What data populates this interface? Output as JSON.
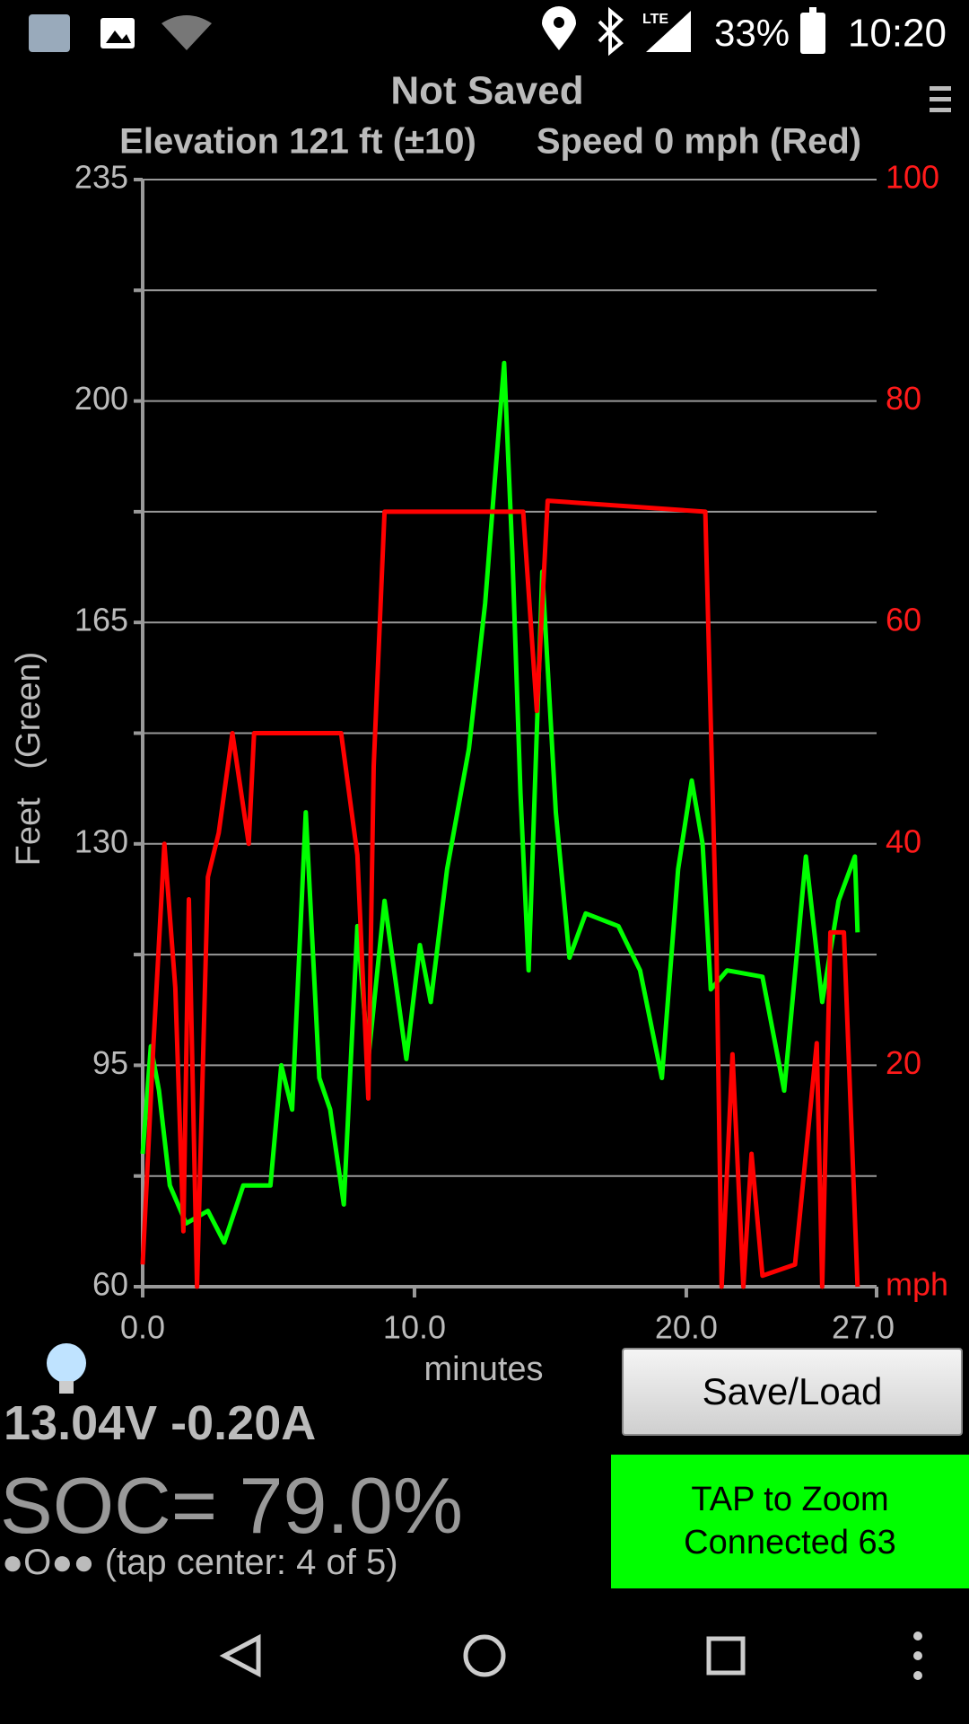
{
  "status_bar": {
    "network": "LTE",
    "battery": "33%",
    "time": "10:20"
  },
  "chart_data": {
    "type": "line",
    "title": "Not Saved",
    "subtitles": [
      "Elevation 121 ft (±10)",
      "Speed 0 mph (Red)"
    ],
    "x_label": "minutes",
    "y_label": "Feet   (Green)",
    "xlim": [
      0,
      27
    ],
    "xticks": [
      {
        "value": 0,
        "label": "0.0"
      },
      {
        "value": 10,
        "label": "10.0"
      },
      {
        "value": 20,
        "label": "20.0"
      },
      {
        "value": 27,
        "label": "27.0"
      }
    ],
    "ylim": [
      60,
      235
    ],
    "yticks": [
      60,
      95,
      130,
      165,
      200,
      235
    ],
    "y2lim": [
      0,
      100
    ],
    "y2ticks": [
      {
        "value": 0,
        "label": "mph"
      },
      20,
      40,
      60,
      80,
      100
    ],
    "grid": true,
    "series": [
      {
        "name": "Elevation",
        "color": "#00ff00",
        "x": [
          0,
          0.3,
          0.6,
          1.0,
          1.6,
          2.4,
          3.0,
          3.7,
          4.7,
          5.1,
          5.5,
          6.0,
          6.5,
          6.9,
          7.4,
          7.9,
          8.3,
          8.9,
          9.7,
          10.2,
          10.6,
          11.2,
          12.0,
          12.6,
          13.0,
          13.3,
          13.6,
          13.9,
          14.2,
          14.7,
          15.2,
          15.7,
          16.3,
          17.5,
          18.3,
          19.1,
          19.7,
          20.2,
          20.6,
          20.9,
          21.5,
          22.8,
          23.6,
          24.4,
          25.0,
          25.6,
          26.2,
          26.3
        ],
        "values": [
          81,
          98,
          91,
          76,
          70,
          72,
          67,
          76,
          76,
          95,
          88,
          135,
          93,
          88,
          73,
          117,
          96,
          121,
          96,
          114,
          105,
          126,
          145,
          168,
          190,
          206,
          176,
          138,
          110,
          173,
          135,
          112,
          119,
          117,
          110,
          93,
          126,
          140,
          130,
          107,
          110,
          109,
          91,
          128,
          105,
          121,
          128,
          116
        ]
      },
      {
        "name": "Speed",
        "color": "#ff0000",
        "axis": "y2",
        "x": [
          0,
          0.4,
          0.8,
          1.2,
          1.5,
          1.7,
          2.0,
          2.4,
          2.8,
          3.3,
          3.9,
          4.1,
          7.3,
          7.9,
          8.3,
          8.5,
          8.9,
          14.0,
          14.5,
          14.9,
          20.7,
          21.1,
          21.3,
          21.7,
          22.1,
          22.4,
          22.8,
          24.0,
          24.8,
          25.0,
          25.3,
          25.8,
          26.3
        ],
        "values": [
          2,
          22,
          40,
          27,
          5,
          35,
          0,
          37,
          41,
          50,
          40,
          50,
          50,
          39,
          17,
          47,
          70,
          70,
          52,
          71,
          70,
          32,
          0,
          21,
          0,
          12,
          1,
          2,
          22,
          0,
          32,
          32,
          0
        ]
      }
    ]
  },
  "readout": {
    "electrical": "13.04V -0.20A",
    "soc": "SOC= 79.0%",
    "page_hint": "●O●● (tap center: 4 of 5)"
  },
  "buttons": {
    "save_load": "Save/Load",
    "zoom": [
      "TAP to Zoom",
      "Connected 63"
    ]
  }
}
